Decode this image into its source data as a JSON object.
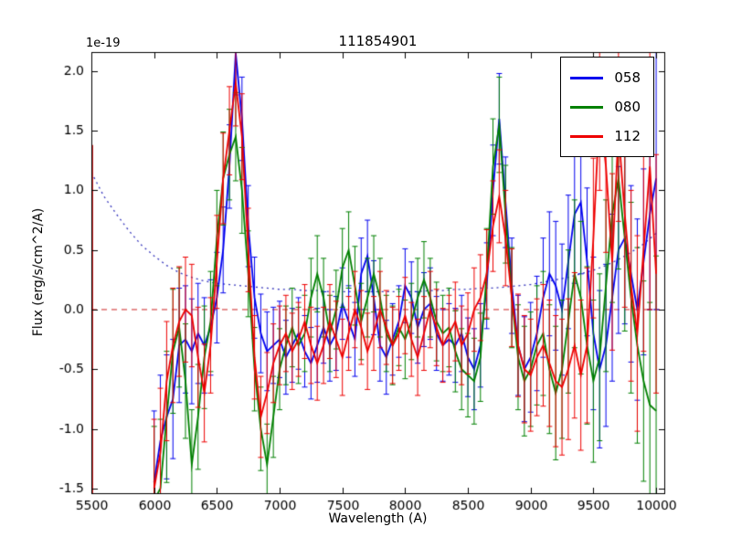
{
  "figure": {
    "title": "111854901",
    "xlabel": "Wavelength (A)",
    "ylabel": "Flux (erg/s/cm^2/A)",
    "offset_text": "1e-19",
    "background": "#ffffff",
    "axes_color": "#000000"
  },
  "legend": {
    "items": [
      {
        "label": "058",
        "color": "#0000ee"
      },
      {
        "label": "080",
        "color": "#008000"
      },
      {
        "label": "112",
        "color": "#ee0000"
      }
    ]
  },
  "chart_data": {
    "type": "line",
    "title": "111854901",
    "xlabel": "Wavelength (A)",
    "ylabel": "Flux (erg/s/cm^2/A)",
    "y_scale_factor": "1e-19",
    "xlim": [
      5500,
      10065
    ],
    "ylim": [
      -1.54,
      2.16
    ],
    "xtick_values": [
      5500,
      6000,
      6500,
      7000,
      7500,
      8000,
      8500,
      9000,
      9500,
      10000
    ],
    "xtick_labels": [
      "5500",
      "6000",
      "6500",
      "7000",
      "7500",
      "8000",
      "8500",
      "9000",
      "9500",
      "10000"
    ],
    "ytick_values": [
      -1.5,
      -1.0,
      -0.5,
      0.0,
      0.5,
      1.0,
      1.5,
      2.0
    ],
    "ytick_labels": [
      "-1.5",
      "-1.0",
      "-0.5",
      "0.0",
      "0.5",
      "1.0",
      "1.5",
      "2.0"
    ],
    "grid": false,
    "legend_position": "upper right",
    "zero_line": {
      "y": 0.0,
      "color": "#cc2222",
      "style": "dashed"
    },
    "left_edge_spike": {
      "x": 5508,
      "y_from": -1.54,
      "y_to": 1.38,
      "color": "#cc0000"
    },
    "noise_curve": {
      "color": "#3333bb",
      "style": "dotted",
      "x": [
        5500,
        5600,
        5700,
        5800,
        5900,
        6000,
        6100,
        6200,
        6300,
        6400,
        6500,
        6600,
        6700,
        6800,
        6900,
        7000,
        7100,
        7200,
        7300,
        7400,
        7500,
        7600,
        7700,
        7800,
        7900,
        8000,
        8100,
        8200,
        8300,
        8400,
        8500,
        8600,
        8700,
        8800,
        8900,
        9000,
        9100,
        9200,
        9300,
        9400,
        9500,
        9600,
        9700,
        9800,
        9900,
        10000
      ],
      "y": [
        1.15,
        0.95,
        0.8,
        0.66,
        0.54,
        0.45,
        0.37,
        0.31,
        0.27,
        0.24,
        0.22,
        0.21,
        0.2,
        0.19,
        0.18,
        0.17,
        0.17,
        0.16,
        0.16,
        0.15,
        0.15,
        0.15,
        0.15,
        0.15,
        0.15,
        0.15,
        0.15,
        0.16,
        0.16,
        0.17,
        0.17,
        0.18,
        0.18,
        0.19,
        0.2,
        0.21,
        0.23,
        0.25,
        0.27,
        0.3,
        0.33,
        0.37,
        0.42,
        0.48,
        0.55,
        0.64
      ]
    },
    "x_start": 6000,
    "x_step": 50,
    "series": [
      {
        "name": "058",
        "color": "#0000ee",
        "values": [
          -1.45,
          -1.1,
          -0.9,
          -0.75,
          -0.3,
          -0.25,
          -0.35,
          -0.2,
          -0.3,
          -0.15,
          0.1,
          0.5,
          1.2,
          2.15,
          1.6,
          0.7,
          0.1,
          -0.2,
          -0.35,
          -0.3,
          -0.25,
          -0.4,
          -0.3,
          -0.2,
          -0.35,
          -0.45,
          -0.3,
          -0.15,
          -0.3,
          -0.2,
          0.05,
          -0.1,
          -0.25,
          0.3,
          0.45,
          0.1,
          -0.3,
          -0.4,
          -0.25,
          -0.1,
          0.2,
          0.1,
          -0.15,
          0.0,
          0.05,
          -0.2,
          -0.3,
          -0.25,
          -0.3,
          -0.2,
          -0.4,
          -0.5,
          -0.3,
          0.2,
          1.0,
          1.6,
          0.9,
          0.2,
          -0.3,
          -0.5,
          -0.4,
          -0.2,
          0.1,
          0.3,
          0.2,
          0.0,
          0.4,
          0.8,
          0.9,
          0.4,
          -0.2,
          -0.5,
          -0.3,
          0.1,
          0.5,
          0.6,
          0.3,
          0.0,
          0.4,
          0.8,
          1.1
        ],
        "errors": [
          0.6,
          0.55,
          0.52,
          0.5,
          0.48,
          0.45,
          0.44,
          0.42,
          0.4,
          0.4,
          0.38,
          0.36,
          0.35,
          0.35,
          0.35,
          0.34,
          0.34,
          0.33,
          0.33,
          0.32,
          0.32,
          0.31,
          0.31,
          0.3,
          0.3,
          0.3,
          0.31,
          0.3,
          0.3,
          0.31,
          0.3,
          0.3,
          0.31,
          0.3,
          0.3,
          0.31,
          0.3,
          0.31,
          0.3,
          0.3,
          0.31,
          0.3,
          0.3,
          0.31,
          0.3,
          0.31,
          0.3,
          0.3,
          0.31,
          0.32,
          0.33,
          0.34,
          0.35,
          0.36,
          0.38,
          0.38,
          0.38,
          0.4,
          0.42,
          0.44,
          0.46,
          0.48,
          0.5,
          0.52,
          0.54,
          0.55,
          0.56,
          0.58,
          0.6,
          0.62,
          0.64,
          0.66,
          0.68,
          0.7,
          0.7,
          0.72,
          0.74,
          0.76,
          0.78,
          0.8,
          1.1
        ]
      },
      {
        "name": "080",
        "color": "#008000",
        "values": [
          -1.6,
          -1.5,
          -0.9,
          -0.35,
          -0.15,
          -0.6,
          -1.3,
          -0.9,
          -0.4,
          -0.1,
          0.6,
          1.1,
          1.3,
          1.45,
          1.0,
          0.3,
          -0.5,
          -1.0,
          -1.3,
          -0.9,
          -0.5,
          -0.3,
          -0.15,
          -0.3,
          -0.2,
          0.1,
          0.3,
          0.1,
          -0.2,
          0.0,
          0.35,
          0.5,
          0.2,
          -0.1,
          0.1,
          0.3,
          0.1,
          -0.2,
          -0.3,
          -0.15,
          -0.25,
          -0.1,
          0.1,
          0.25,
          0.1,
          -0.1,
          -0.2,
          -0.15,
          -0.35,
          -0.5,
          -0.55,
          -0.6,
          -0.4,
          0.3,
          1.2,
          1.55,
          0.8,
          0.1,
          -0.4,
          -0.6,
          -0.5,
          -0.3,
          -0.2,
          -0.5,
          -0.7,
          -0.5,
          -0.1,
          0.3,
          0.1,
          -0.3,
          -0.6,
          -0.4,
          0.2,
          0.8,
          1.1,
          0.6,
          0.1,
          -0.3,
          -0.6,
          -0.8,
          -0.85
        ],
        "errors": [
          0.62,
          0.58,
          0.55,
          0.52,
          0.5,
          0.48,
          0.46,
          0.44,
          0.43,
          0.42,
          0.4,
          0.39,
          0.38,
          0.37,
          0.36,
          0.36,
          0.35,
          0.35,
          0.34,
          0.34,
          0.34,
          0.33,
          0.33,
          0.32,
          0.32,
          0.33,
          0.32,
          0.33,
          0.32,
          0.33,
          0.33,
          0.32,
          0.33,
          0.32,
          0.33,
          0.32,
          0.33,
          0.32,
          0.33,
          0.32,
          0.33,
          0.32,
          0.33,
          0.32,
          0.33,
          0.33,
          0.32,
          0.33,
          0.34,
          0.34,
          0.35,
          0.36,
          0.37,
          0.38,
          0.4,
          0.4,
          0.41,
          0.42,
          0.44,
          0.46,
          0.48,
          0.5,
          0.52,
          0.54,
          0.56,
          0.58,
          0.6,
          0.62,
          0.64,
          0.66,
          0.68,
          0.7,
          0.72,
          0.74,
          0.76,
          0.78,
          0.8,
          0.82,
          0.84,
          0.86,
          1.3
        ]
      },
      {
        "name": "112",
        "color": "#ee0000",
        "values": [
          -1.5,
          -1.2,
          -0.6,
          -0.3,
          -0.1,
          0.0,
          -0.05,
          -0.4,
          -0.7,
          -0.3,
          0.4,
          1.1,
          1.5,
          1.9,
          1.45,
          0.5,
          -0.4,
          -0.9,
          -0.7,
          -0.45,
          -0.3,
          -0.2,
          -0.35,
          -0.25,
          -0.1,
          -0.3,
          -0.45,
          -0.3,
          -0.1,
          -0.25,
          -0.4,
          -0.2,
          0.0,
          -0.15,
          -0.35,
          -0.2,
          0.0,
          -0.15,
          -0.3,
          -0.2,
          -0.05,
          -0.25,
          -0.4,
          -0.2,
          0.0,
          -0.15,
          -0.3,
          -0.2,
          -0.1,
          -0.3,
          -0.2,
          0.0,
          0.1,
          0.3,
          0.7,
          0.95,
          0.6,
          0.1,
          -0.3,
          -0.5,
          -0.55,
          -0.4,
          -0.3,
          -0.45,
          -0.6,
          -0.65,
          -0.5,
          -0.3,
          -0.55,
          -0.3,
          0.6,
          1.7,
          1.2,
          0.4,
          1.5,
          0.8,
          0.2,
          -0.2,
          0.5,
          1.2,
          0.3
        ],
        "errors": [
          0.58,
          0.54,
          0.5,
          0.48,
          0.46,
          0.44,
          0.43,
          0.42,
          0.41,
          0.4,
          0.39,
          0.38,
          0.37,
          0.36,
          0.36,
          0.35,
          0.35,
          0.34,
          0.34,
          0.33,
          0.33,
          0.32,
          0.32,
          0.31,
          0.31,
          0.32,
          0.31,
          0.32,
          0.31,
          0.32,
          0.32,
          0.31,
          0.32,
          0.31,
          0.32,
          0.31,
          0.32,
          0.31,
          0.32,
          0.31,
          0.32,
          0.31,
          0.32,
          0.31,
          0.32,
          0.32,
          0.31,
          0.32,
          0.33,
          0.33,
          0.34,
          0.35,
          0.36,
          0.37,
          0.38,
          0.39,
          0.4,
          0.41,
          0.43,
          0.45,
          0.47,
          0.49,
          0.51,
          0.53,
          0.55,
          0.57,
          0.59,
          0.61,
          0.63,
          0.65,
          0.67,
          0.7,
          0.72,
          0.74,
          0.76,
          0.78,
          0.8,
          0.82,
          0.85,
          1.2,
          1.0
        ]
      }
    ]
  }
}
